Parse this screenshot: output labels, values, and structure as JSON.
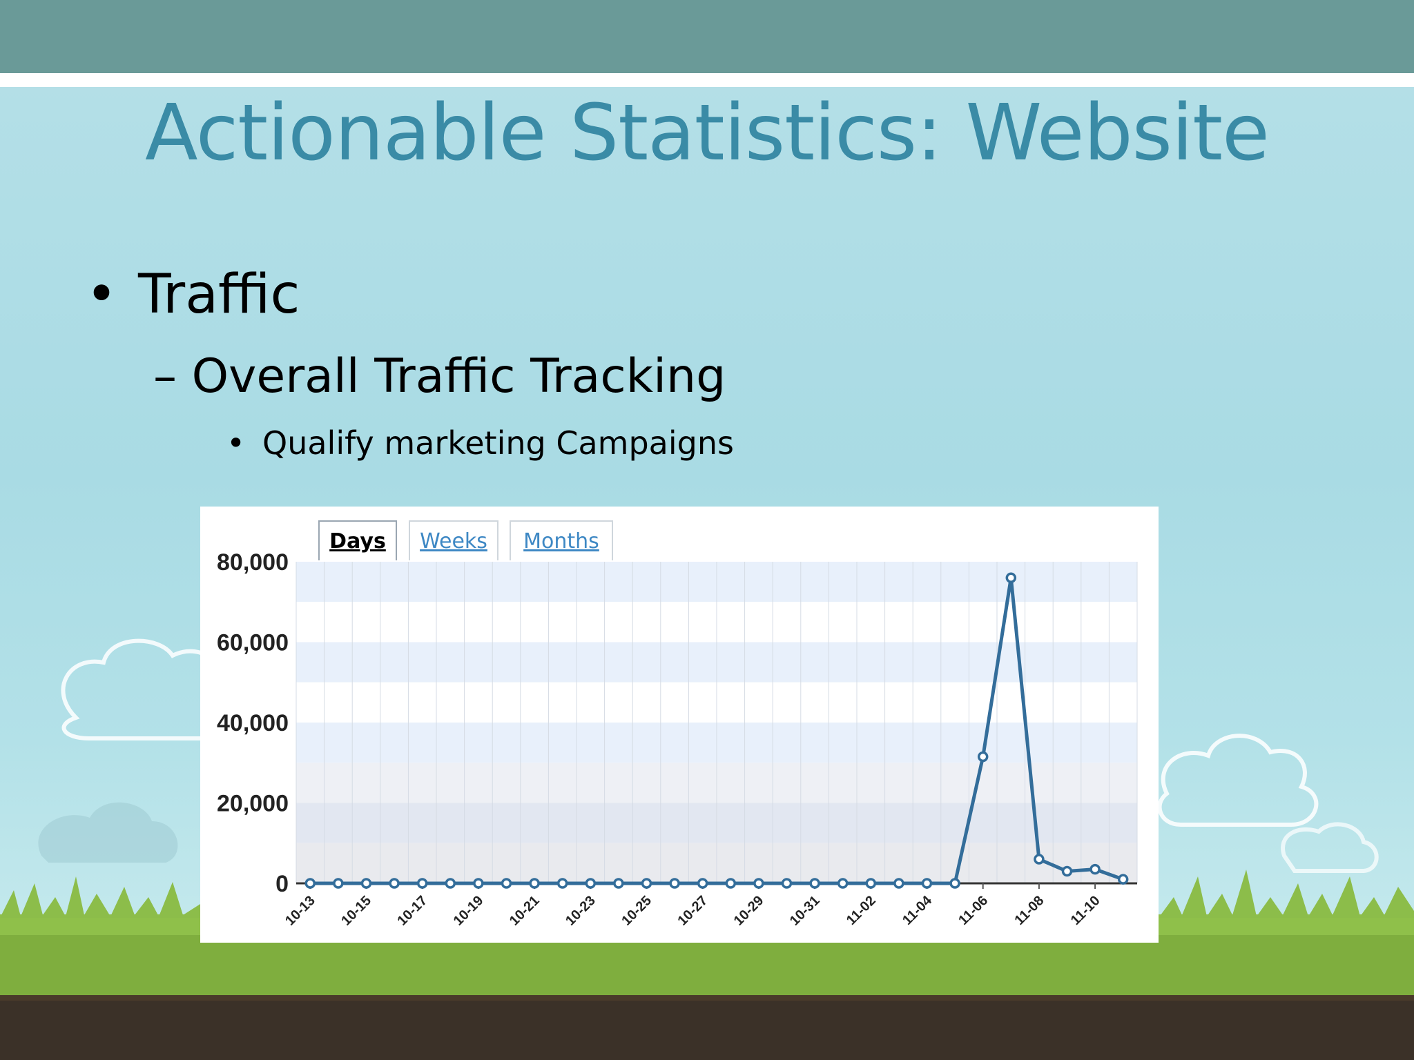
{
  "slide": {
    "title": "Actionable Statistics: Website",
    "bullets": [
      {
        "level": 1,
        "marker": "•",
        "text": "Traffic"
      },
      {
        "level": 2,
        "marker": "–",
        "text": "Overall Traffic Tracking"
      },
      {
        "level": 3,
        "marker": "•",
        "text": "Qualify marketing Campaigns"
      }
    ]
  },
  "tabs": [
    {
      "label": "Days",
      "active": true
    },
    {
      "label": "Weeks",
      "active": false
    },
    {
      "label": "Months",
      "active": false
    }
  ],
  "colors": {
    "line": "#336d9a",
    "title": "#3a8ba6",
    "tab_link": "#3e88c4"
  },
  "chart_data": {
    "type": "line",
    "title": "",
    "xlabel": "",
    "ylabel": "",
    "ylim": [
      0,
      80000
    ],
    "yticks": [
      0,
      20000,
      40000,
      60000,
      80000
    ],
    "ytick_labels": [
      "0",
      "20,000",
      "40,000",
      "60,000",
      "80,000"
    ],
    "grid": true,
    "categories": [
      "10-13",
      "10-14",
      "10-15",
      "10-16",
      "10-17",
      "10-18",
      "10-19",
      "10-20",
      "10-21",
      "10-22",
      "10-23",
      "10-24",
      "10-25",
      "10-26",
      "10-27",
      "10-28",
      "10-29",
      "10-30",
      "10-31",
      "11-01",
      "11-02",
      "11-03",
      "11-04",
      "11-05",
      "11-06",
      "11-07",
      "11-08",
      "11-09",
      "11-10",
      "11-11"
    ],
    "xtick_labels": [
      "10-13",
      "10-15",
      "10-17",
      "10-19",
      "10-21",
      "10-23",
      "10-25",
      "10-27",
      "10-29",
      "10-31",
      "11-02",
      "11-04",
      "11-06",
      "11-08",
      "11-10"
    ],
    "series": [
      {
        "values": [
          0,
          0,
          0,
          0,
          0,
          0,
          0,
          0,
          0,
          0,
          0,
          0,
          0,
          0,
          0,
          0,
          0,
          0,
          0,
          0,
          0,
          0,
          0,
          0,
          31500,
          76000,
          6000,
          3000,
          3500,
          1000
        ]
      }
    ]
  }
}
